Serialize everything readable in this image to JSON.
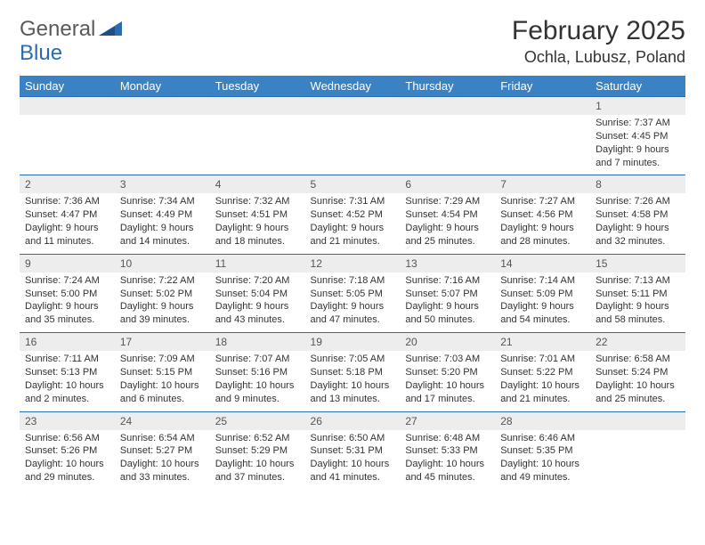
{
  "logo": {
    "word1": "General",
    "word2": "Blue"
  },
  "title": "February 2025",
  "location": "Ochla, Lubusz, Poland",
  "colors": {
    "header_bg": "#3b82c4",
    "header_text": "#ffffff",
    "border": "#2b6cb0",
    "daynum_bg": "#ededed",
    "logo_accent": "#2b6cb0",
    "page_bg": "#ffffff",
    "text": "#333333"
  },
  "weekdays": [
    "Sunday",
    "Monday",
    "Tuesday",
    "Wednesday",
    "Thursday",
    "Friday",
    "Saturday"
  ],
  "weeks": [
    [
      {
        "n": "",
        "sunrise": "",
        "sunset": "",
        "daylight": ""
      },
      {
        "n": "",
        "sunrise": "",
        "sunset": "",
        "daylight": ""
      },
      {
        "n": "",
        "sunrise": "",
        "sunset": "",
        "daylight": ""
      },
      {
        "n": "",
        "sunrise": "",
        "sunset": "",
        "daylight": ""
      },
      {
        "n": "",
        "sunrise": "",
        "sunset": "",
        "daylight": ""
      },
      {
        "n": "",
        "sunrise": "",
        "sunset": "",
        "daylight": ""
      },
      {
        "n": "1",
        "sunrise": "Sunrise: 7:37 AM",
        "sunset": "Sunset: 4:45 PM",
        "daylight": "Daylight: 9 hours and 7 minutes."
      }
    ],
    [
      {
        "n": "2",
        "sunrise": "Sunrise: 7:36 AM",
        "sunset": "Sunset: 4:47 PM",
        "daylight": "Daylight: 9 hours and 11 minutes."
      },
      {
        "n": "3",
        "sunrise": "Sunrise: 7:34 AM",
        "sunset": "Sunset: 4:49 PM",
        "daylight": "Daylight: 9 hours and 14 minutes."
      },
      {
        "n": "4",
        "sunrise": "Sunrise: 7:32 AM",
        "sunset": "Sunset: 4:51 PM",
        "daylight": "Daylight: 9 hours and 18 minutes."
      },
      {
        "n": "5",
        "sunrise": "Sunrise: 7:31 AM",
        "sunset": "Sunset: 4:52 PM",
        "daylight": "Daylight: 9 hours and 21 minutes."
      },
      {
        "n": "6",
        "sunrise": "Sunrise: 7:29 AM",
        "sunset": "Sunset: 4:54 PM",
        "daylight": "Daylight: 9 hours and 25 minutes."
      },
      {
        "n": "7",
        "sunrise": "Sunrise: 7:27 AM",
        "sunset": "Sunset: 4:56 PM",
        "daylight": "Daylight: 9 hours and 28 minutes."
      },
      {
        "n": "8",
        "sunrise": "Sunrise: 7:26 AM",
        "sunset": "Sunset: 4:58 PM",
        "daylight": "Daylight: 9 hours and 32 minutes."
      }
    ],
    [
      {
        "n": "9",
        "sunrise": "Sunrise: 7:24 AM",
        "sunset": "Sunset: 5:00 PM",
        "daylight": "Daylight: 9 hours and 35 minutes."
      },
      {
        "n": "10",
        "sunrise": "Sunrise: 7:22 AM",
        "sunset": "Sunset: 5:02 PM",
        "daylight": "Daylight: 9 hours and 39 minutes."
      },
      {
        "n": "11",
        "sunrise": "Sunrise: 7:20 AM",
        "sunset": "Sunset: 5:04 PM",
        "daylight": "Daylight: 9 hours and 43 minutes."
      },
      {
        "n": "12",
        "sunrise": "Sunrise: 7:18 AM",
        "sunset": "Sunset: 5:05 PM",
        "daylight": "Daylight: 9 hours and 47 minutes."
      },
      {
        "n": "13",
        "sunrise": "Sunrise: 7:16 AM",
        "sunset": "Sunset: 5:07 PM",
        "daylight": "Daylight: 9 hours and 50 minutes."
      },
      {
        "n": "14",
        "sunrise": "Sunrise: 7:14 AM",
        "sunset": "Sunset: 5:09 PM",
        "daylight": "Daylight: 9 hours and 54 minutes."
      },
      {
        "n": "15",
        "sunrise": "Sunrise: 7:13 AM",
        "sunset": "Sunset: 5:11 PM",
        "daylight": "Daylight: 9 hours and 58 minutes."
      }
    ],
    [
      {
        "n": "16",
        "sunrise": "Sunrise: 7:11 AM",
        "sunset": "Sunset: 5:13 PM",
        "daylight": "Daylight: 10 hours and 2 minutes."
      },
      {
        "n": "17",
        "sunrise": "Sunrise: 7:09 AM",
        "sunset": "Sunset: 5:15 PM",
        "daylight": "Daylight: 10 hours and 6 minutes."
      },
      {
        "n": "18",
        "sunrise": "Sunrise: 7:07 AM",
        "sunset": "Sunset: 5:16 PM",
        "daylight": "Daylight: 10 hours and 9 minutes."
      },
      {
        "n": "19",
        "sunrise": "Sunrise: 7:05 AM",
        "sunset": "Sunset: 5:18 PM",
        "daylight": "Daylight: 10 hours and 13 minutes."
      },
      {
        "n": "20",
        "sunrise": "Sunrise: 7:03 AM",
        "sunset": "Sunset: 5:20 PM",
        "daylight": "Daylight: 10 hours and 17 minutes."
      },
      {
        "n": "21",
        "sunrise": "Sunrise: 7:01 AM",
        "sunset": "Sunset: 5:22 PM",
        "daylight": "Daylight: 10 hours and 21 minutes."
      },
      {
        "n": "22",
        "sunrise": "Sunrise: 6:58 AM",
        "sunset": "Sunset: 5:24 PM",
        "daylight": "Daylight: 10 hours and 25 minutes."
      }
    ],
    [
      {
        "n": "23",
        "sunrise": "Sunrise: 6:56 AM",
        "sunset": "Sunset: 5:26 PM",
        "daylight": "Daylight: 10 hours and 29 minutes."
      },
      {
        "n": "24",
        "sunrise": "Sunrise: 6:54 AM",
        "sunset": "Sunset: 5:27 PM",
        "daylight": "Daylight: 10 hours and 33 minutes."
      },
      {
        "n": "25",
        "sunrise": "Sunrise: 6:52 AM",
        "sunset": "Sunset: 5:29 PM",
        "daylight": "Daylight: 10 hours and 37 minutes."
      },
      {
        "n": "26",
        "sunrise": "Sunrise: 6:50 AM",
        "sunset": "Sunset: 5:31 PM",
        "daylight": "Daylight: 10 hours and 41 minutes."
      },
      {
        "n": "27",
        "sunrise": "Sunrise: 6:48 AM",
        "sunset": "Sunset: 5:33 PM",
        "daylight": "Daylight: 10 hours and 45 minutes."
      },
      {
        "n": "28",
        "sunrise": "Sunrise: 6:46 AM",
        "sunset": "Sunset: 5:35 PM",
        "daylight": "Daylight: 10 hours and 49 minutes."
      },
      {
        "n": "",
        "sunrise": "",
        "sunset": "",
        "daylight": ""
      }
    ]
  ]
}
